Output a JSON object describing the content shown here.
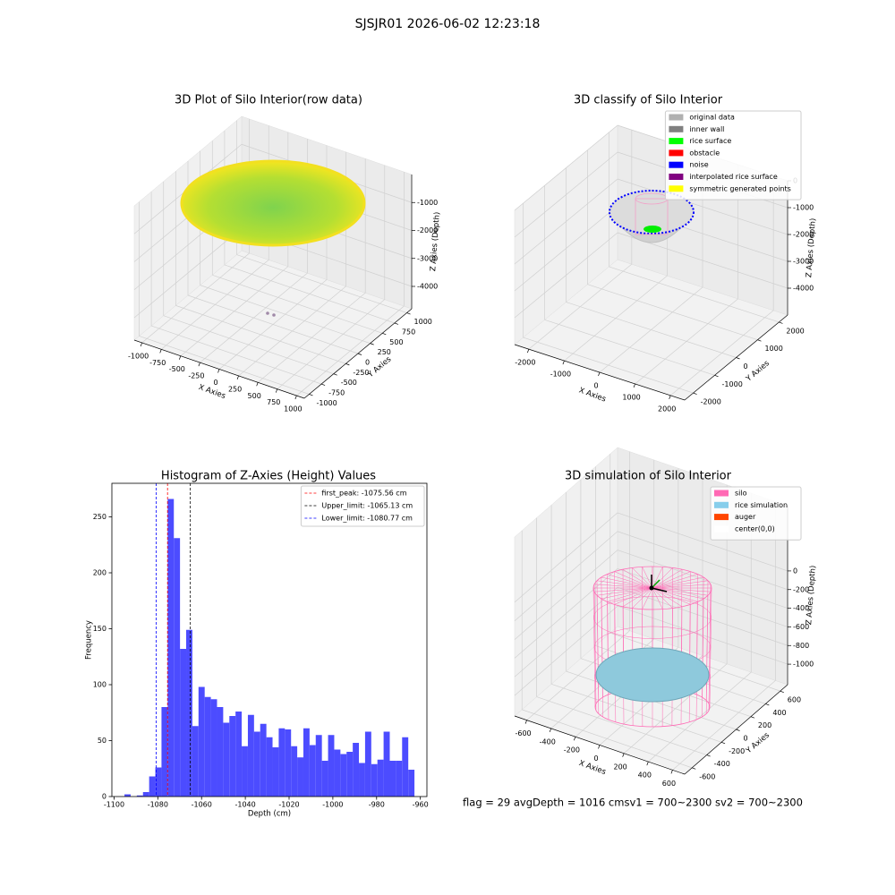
{
  "title": "SJSJR01 2026-06-02 12:23:18",
  "footer": "flag = 29  avgDepth = 1016 cmsv1 = 700~2300  sv2 = 700~2300",
  "chart_data": [
    {
      "type": "scatter3d",
      "title": "3D Plot of Silo Interior(row data)",
      "xlabel": "X Axies",
      "ylabel": "Y Axies",
      "zlabel": "Z Axies (Depth)",
      "xlim": [
        -1100,
        1100
      ],
      "ylim": [
        -1100,
        1100
      ],
      "zlim": [
        -4800,
        0
      ],
      "xticks": [
        -1000,
        -750,
        -500,
        -250,
        0,
        250,
        500,
        750,
        1000
      ],
      "yticks": [
        -1000,
        -750,
        -500,
        -250,
        0,
        250,
        500,
        750,
        1000
      ],
      "zticks": [
        -1000,
        -2000,
        -3000,
        -4000
      ],
      "grid": true
    },
    {
      "type": "scatter3d",
      "title": "3D classify of Silo Interior",
      "xlabel": "X Axies",
      "ylabel": "Y Axies",
      "zlabel": "Z Axies (Depth)",
      "xlim": [
        -2400,
        2400
      ],
      "ylim": [
        -2400,
        2400
      ],
      "zlim": [
        -5000,
        0
      ],
      "xticks": [
        -2000,
        -1000,
        0,
        1000,
        2000
      ],
      "yticks": [
        -2000,
        -1000,
        0,
        1000,
        2000
      ],
      "zticks": [
        0,
        -1000,
        -2000,
        -3000,
        -4000
      ],
      "grid": true,
      "legend": "upper right",
      "series": [
        {
          "name": "original data",
          "color": "#b0b0b0"
        },
        {
          "name": "inner wall",
          "color": "#808080"
        },
        {
          "name": "rice surface",
          "color": "#00ff00"
        },
        {
          "name": "obstacle",
          "color": "#ff0000"
        },
        {
          "name": "noise",
          "color": "#0000ff"
        },
        {
          "name": "interpolated rice surface",
          "color": "#800080"
        },
        {
          "name": "symmetric generated points",
          "color": "#ffff00"
        }
      ]
    },
    {
      "type": "histogram",
      "title": "Histogram of Z-Axies (Height) Values",
      "xlabel": "Depth (cm)",
      "ylabel": "Frequency",
      "color": "#4c4cff",
      "bins": [
        -1095.24,
        -1092.42,
        -1089.6,
        -1086.78,
        -1083.96,
        -1081.14,
        -1078.32,
        -1075.5,
        -1072.68,
        -1069.86,
        -1067.04,
        -1064.22,
        -1061.4,
        -1058.58,
        -1055.76,
        -1052.94,
        -1050.12,
        -1047.3,
        -1044.48,
        -1041.66,
        -1038.84,
        -1036.02,
        -1033.2,
        -1030.38,
        -1027.56,
        -1024.74,
        -1021.92,
        -1019.1,
        -1016.28,
        -1013.46,
        -1010.64,
        -1007.82,
        -1005.0,
        -1002.18,
        -999.36,
        -996.54,
        -993.72,
        -990.9,
        -988.08,
        -985.26,
        -982.44,
        -979.62,
        -976.8,
        -973.98,
        -971.16,
        -968.34,
        -965.52,
        -962.7
      ],
      "values": [
        2,
        0,
        1,
        4,
        18,
        26,
        80,
        266,
        231,
        132,
        149,
        63,
        98,
        89,
        87,
        80,
        66,
        72,
        76,
        45,
        73,
        58,
        65,
        53,
        44,
        61,
        60,
        45,
        35,
        61,
        46,
        55,
        32,
        55,
        42,
        38,
        40,
        48,
        30,
        58,
        29,
        33,
        58,
        32,
        32,
        53,
        24
      ],
      "xlim": [
        -1101,
        -957
      ],
      "ylim": [
        0,
        280
      ],
      "xticks": [
        -1100,
        -1080,
        -1060,
        -1040,
        -1020,
        -1000,
        -980,
        -960
      ],
      "yticks": [
        0,
        50,
        100,
        150,
        200,
        250
      ],
      "legend": "upper right",
      "lines": [
        {
          "name": "first_peak: -1075.56 cm",
          "value": -1075.56,
          "color": "#ff0000"
        },
        {
          "name": "Upper_limit: -1065.13 cm",
          "value": -1065.13,
          "color": "#000000"
        },
        {
          "name": "Lower_limit: -1080.77 cm",
          "value": -1080.77,
          "color": "#0000ff"
        }
      ]
    },
    {
      "type": "scatter3d",
      "title": "3D simulation of Silo Interior",
      "xlabel": "X Axies",
      "ylabel": "Y Axies",
      "zlabel": "Z Axies (Depth)",
      "xlim": [
        -700,
        700
      ],
      "ylim": [
        -700,
        700
      ],
      "zlim": [
        -1220,
        700
      ],
      "xticks": [
        -600,
        -400,
        -200,
        0,
        200,
        400,
        600
      ],
      "yticks": [
        -600,
        -400,
        -200,
        0,
        200,
        400,
        600
      ],
      "zticks": [
        0,
        -200,
        -400,
        -600,
        -800,
        -1000
      ],
      "grid": true,
      "legend": "upper right",
      "series": [
        {
          "name": "silo",
          "color": "#ff69b4"
        },
        {
          "name": "rice simulation",
          "color": "#87ceeb"
        },
        {
          "name": "auger",
          "color": "#ff4500"
        },
        {
          "name": "center(0,0)",
          "color": "#ffffff"
        }
      ]
    }
  ]
}
